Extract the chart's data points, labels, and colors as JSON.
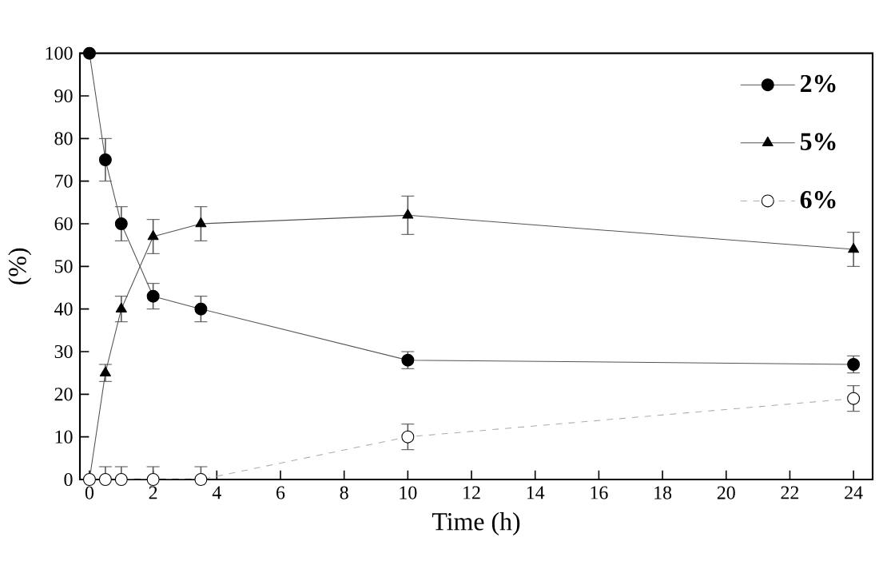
{
  "chart_data": {
    "type": "line",
    "xlabel": "Time (h)",
    "ylabel": "(%)",
    "x": [
      0,
      0.5,
      1,
      2,
      3.5,
      10,
      24
    ],
    "series": [
      {
        "name": "2%",
        "color": "#000000",
        "marker": "circle",
        "line_style": "solid",
        "values": [
          100,
          75,
          60,
          43,
          40,
          28,
          27
        ],
        "errors": [
          null,
          5,
          4,
          3,
          3,
          2,
          2
        ]
      },
      {
        "name": "5%",
        "color": "#000000",
        "marker": "triangle",
        "line_style": "solid",
        "values": [
          0,
          25,
          40,
          57,
          60,
          62,
          54
        ],
        "errors": [
          null,
          2,
          3,
          4,
          4,
          4.5,
          4
        ]
      },
      {
        "name": "6%",
        "color": "#ffffff",
        "marker": "circle",
        "line_style": "dashed",
        "values": [
          0,
          0,
          0,
          0,
          0,
          10,
          19
        ],
        "errors": [
          null,
          3,
          3,
          3,
          3,
          3,
          3
        ]
      }
    ],
    "xlim": [
      -0.3,
      24.6
    ],
    "ylim": [
      0,
      100
    ],
    "xticks": [
      0,
      2,
      4,
      6,
      8,
      10,
      12,
      14,
      16,
      18,
      20,
      22,
      24
    ],
    "yticks": [
      0,
      10,
      20,
      30,
      40,
      50,
      60,
      70,
      80,
      90,
      100
    ],
    "grid": false,
    "legend": "top right"
  }
}
